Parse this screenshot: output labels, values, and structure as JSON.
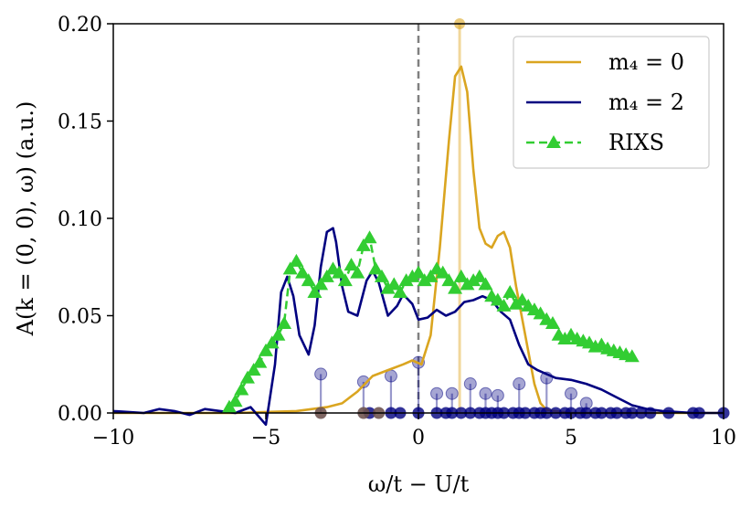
{
  "chart_data": {
    "type": "line",
    "xlabel": "ω/t − U/t",
    "ylabel": "A(k = (0, 0), ω)  (a.u.)",
    "xlim": [
      -10,
      10
    ],
    "ylim": [
      0,
      0.2
    ],
    "xticks": [
      -10,
      -5,
      0,
      5,
      10
    ],
    "xtick_labels": [
      "−10",
      "−5",
      "0",
      "5",
      "10"
    ],
    "yticks": [
      0.0,
      0.05,
      0.1,
      0.15,
      0.2
    ],
    "ytick_labels": [
      "0.00",
      "0.05",
      "0.10",
      "0.15",
      "0.20"
    ],
    "grid": false,
    "legend_position": "top-right",
    "reference_lines": [
      {
        "orientation": "vertical",
        "x": 0,
        "style": "dashed",
        "color": "#808080"
      },
      {
        "orientation": "vertical",
        "x": 1.35,
        "style": "solid",
        "color": "#f1d79b"
      }
    ],
    "series": [
      {
        "name": "m₄ = 0",
        "color": "#daa520",
        "style": "line",
        "x": [
          -10,
          -8,
          -6,
          -5,
          -4,
          -3,
          -2.5,
          -2,
          -1.5,
          -1,
          -0.5,
          -0.2,
          0.1,
          0.4,
          0.7,
          1.0,
          1.2,
          1.4,
          1.6,
          1.8,
          2.0,
          2.2,
          2.4,
          2.6,
          2.8,
          3.0,
          3.2,
          3.5,
          3.8,
          4.0,
          4.2,
          5,
          6,
          7,
          8,
          9,
          10
        ],
        "y": [
          0,
          0,
          0,
          0.0005,
          0.001,
          0.003,
          0.005,
          0.011,
          0.019,
          0.022,
          0.025,
          0.027,
          0.025,
          0.04,
          0.085,
          0.14,
          0.173,
          0.178,
          0.165,
          0.125,
          0.095,
          0.087,
          0.085,
          0.091,
          0.093,
          0.085,
          0.065,
          0.04,
          0.015,
          0.005,
          0.0015,
          0,
          0,
          0,
          0,
          0,
          0
        ]
      },
      {
        "name": "m₄ = 2",
        "color": "#000080",
        "style": "line",
        "x": [
          -10,
          -9,
          -8.5,
          -8,
          -7.5,
          -7,
          -6.5,
          -6,
          -5.5,
          -5,
          -4.7,
          -4.5,
          -4.3,
          -4.1,
          -3.9,
          -3.6,
          -3.4,
          -3.2,
          -3.0,
          -2.8,
          -2.7,
          -2.5,
          -2.3,
          -2.0,
          -1.7,
          -1.5,
          -1.3,
          -1.0,
          -0.7,
          -0.5,
          -0.2,
          0,
          0.3,
          0.6,
          0.9,
          1.2,
          1.5,
          1.8,
          2.1,
          2.4,
          2.7,
          3.0,
          3.3,
          3.6,
          3.9,
          4.2,
          4.5,
          5.0,
          5.5,
          6.0,
          6.5,
          7.0,
          7.5,
          8.0,
          9.0,
          10.0
        ],
        "y": [
          0.001,
          0.0,
          0.002,
          0.001,
          -0.001,
          0.002,
          0.001,
          0.0,
          0.003,
          -0.006,
          0.025,
          0.062,
          0.07,
          0.06,
          0.04,
          0.03,
          0.045,
          0.075,
          0.093,
          0.095,
          0.088,
          0.065,
          0.052,
          0.05,
          0.068,
          0.073,
          0.067,
          0.05,
          0.055,
          0.061,
          0.056,
          0.048,
          0.049,
          0.053,
          0.05,
          0.052,
          0.057,
          0.058,
          0.06,
          0.058,
          0.052,
          0.048,
          0.035,
          0.025,
          0.022,
          0.02,
          0.018,
          0.017,
          0.015,
          0.012,
          0.008,
          0.004,
          0.002,
          0.001,
          0.0,
          0.0
        ]
      },
      {
        "name": "RIXS",
        "color": "#32cd32",
        "style": "dashed-triangles",
        "x": [
          -6.2,
          -6.0,
          -5.8,
          -5.6,
          -5.4,
          -5.2,
          -5.0,
          -4.8,
          -4.6,
          -4.4,
          -4.2,
          -4.0,
          -3.8,
          -3.6,
          -3.4,
          -3.2,
          -3.0,
          -2.8,
          -2.6,
          -2.4,
          -2.2,
          -2.0,
          -1.8,
          -1.6,
          -1.4,
          -1.2,
          -1.0,
          -0.8,
          -0.6,
          -0.4,
          -0.2,
          0.0,
          0.2,
          0.4,
          0.6,
          0.8,
          1.0,
          1.2,
          1.4,
          1.6,
          1.8,
          2.0,
          2.2,
          2.4,
          2.6,
          2.8,
          3.0,
          3.2,
          3.4,
          3.6,
          3.8,
          4.0,
          4.2,
          4.4,
          4.6,
          4.8,
          5.0,
          5.2,
          5.4,
          5.6,
          5.8,
          6.0,
          6.2,
          6.4,
          6.6,
          6.8,
          7.0
        ],
        "y": [
          0.003,
          0.006,
          0.012,
          0.018,
          0.022,
          0.026,
          0.032,
          0.036,
          0.04,
          0.046,
          0.074,
          0.078,
          0.072,
          0.068,
          0.062,
          0.066,
          0.07,
          0.074,
          0.072,
          0.068,
          0.076,
          0.072,
          0.086,
          0.09,
          0.074,
          0.07,
          0.064,
          0.066,
          0.062,
          0.068,
          0.07,
          0.072,
          0.068,
          0.07,
          0.074,
          0.072,
          0.068,
          0.064,
          0.07,
          0.066,
          0.068,
          0.07,
          0.066,
          0.06,
          0.058,
          0.055,
          0.062,
          0.056,
          0.058,
          0.055,
          0.053,
          0.051,
          0.048,
          0.046,
          0.04,
          0.038,
          0.04,
          0.038,
          0.037,
          0.036,
          0.034,
          0.035,
          0.033,
          0.032,
          0.031,
          0.03,
          0.029
        ]
      }
    ],
    "stems_m4_2": {
      "color": "#000080",
      "x": [
        -3.2,
        -1.8,
        -0.9,
        0.0,
        0.6,
        1.1,
        1.7,
        2.2,
        2.6,
        3.3,
        4.2,
        5.0,
        5.5
      ],
      "y": [
        0.02,
        0.016,
        0.019,
        0.026,
        0.01,
        0.01,
        0.015,
        0.01,
        0.009,
        0.015,
        0.018,
        0.01,
        0.005
      ]
    },
    "baseline_points_m4_2": {
      "color": "#000080",
      "x": [
        -3.2,
        -1.8,
        -1.6,
        -1.3,
        -0.9,
        -0.6,
        0.0,
        0.6,
        0.9,
        1.1,
        1.4,
        1.7,
        2.0,
        2.2,
        2.4,
        2.6,
        2.8,
        3.1,
        3.3,
        3.5,
        3.8,
        4.0,
        4.2,
        4.5,
        4.8,
        5.0,
        5.3,
        5.5,
        5.8,
        6.0,
        6.3,
        6.5,
        6.8,
        7.0,
        7.3,
        7.6,
        8.2,
        9.0,
        9.2,
        10.0
      ],
      "y": [
        0,
        0,
        0,
        0,
        0,
        0,
        0,
        0,
        0,
        0,
        0,
        0,
        0,
        0,
        0,
        0,
        0,
        0,
        0,
        0,
        0,
        0,
        0,
        0,
        0,
        0,
        0,
        0,
        0,
        0,
        0,
        0,
        0,
        0,
        0,
        0,
        0,
        0,
        0,
        0
      ]
    },
    "peak_point_m4_0": {
      "x": 1.35,
      "y": 0.2,
      "color": "#daa520"
    },
    "baseline_points_m4_0": {
      "color": "#daa520",
      "x": [
        -3.2,
        -1.8,
        -1.3
      ],
      "y": [
        0,
        0,
        0
      ]
    }
  },
  "legend": {
    "items": [
      {
        "label": "m₄ = 0",
        "color": "#daa520",
        "marker": "none"
      },
      {
        "label": "m₄ = 2",
        "color": "#000080",
        "marker": "none"
      },
      {
        "label": "RIXS",
        "color": "#32cd32",
        "marker": "triangle"
      }
    ]
  }
}
